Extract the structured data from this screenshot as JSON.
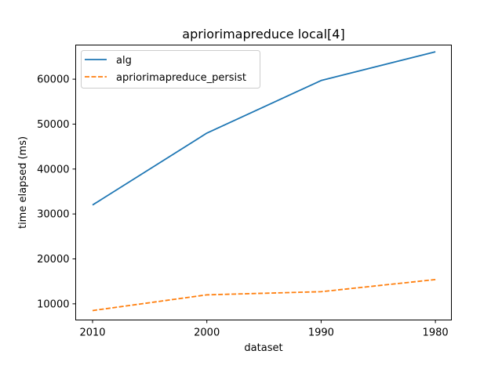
{
  "chart_data": {
    "type": "line",
    "title": "apriorimapreduce local[4]",
    "xlabel": "dataset",
    "ylabel": "time elapsed (ms)",
    "categories": [
      "2010",
      "2000",
      "1990",
      "1980"
    ],
    "yticks": [
      10000,
      20000,
      30000,
      40000,
      50000,
      60000
    ],
    "ylim": [
      6400,
      67600
    ],
    "grid": false,
    "legend_position": "top-left",
    "series": [
      {
        "name": "alg",
        "values": [
          32000,
          48000,
          59700,
          66100
        ],
        "color": "#1f77b4",
        "dash": "solid"
      },
      {
        "name": "apriorimapreduce_persist",
        "values": [
          8500,
          12000,
          12700,
          15400
        ],
        "color": "#ff7f0e",
        "dash": "dashed"
      }
    ]
  }
}
